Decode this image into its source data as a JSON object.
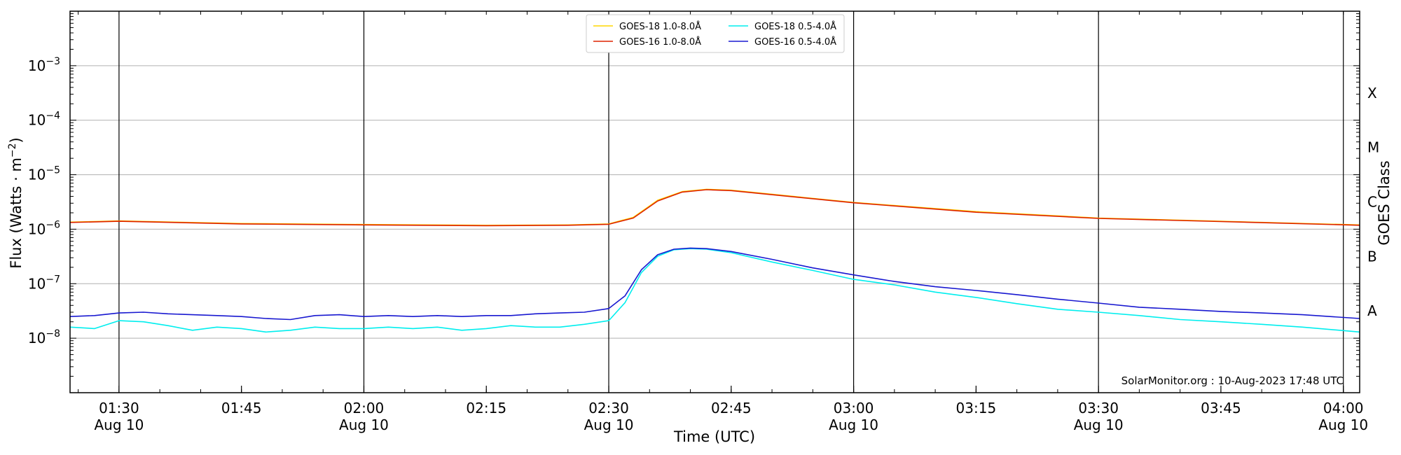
{
  "chart_data": {
    "type": "line",
    "xlabel": "Time (UTC)",
    "ylabel": "Flux (Watts · m",
    "ylabel_sup": "−2",
    "ylabel_close": ")",
    "y2label": "GOES Class",
    "yscale": "log",
    "ylim": [
      1e-09,
      0.01
    ],
    "xlim": [
      "2023-08-10T01:24",
      "2023-08-10T04:02"
    ],
    "grid": "horizontal",
    "legend_position": "top-center",
    "credit": "SolarMonitor.org : 10-Aug-2023 17:48 UTC",
    "y_ticks": [
      {
        "value": 0.001,
        "base": "10",
        "exp": "−3"
      },
      {
        "value": 0.0001,
        "base": "10",
        "exp": "−4"
      },
      {
        "value": 1e-05,
        "base": "10",
        "exp": "−5"
      },
      {
        "value": 1e-06,
        "base": "10",
        "exp": "−6"
      },
      {
        "value": 1e-07,
        "base": "10",
        "exp": "−7"
      },
      {
        "value": 1e-08,
        "base": "10",
        "exp": "−8"
      }
    ],
    "x_ticks": [
      {
        "t": "2023-08-10T01:30",
        "label": "01:30",
        "sub": "Aug 10"
      },
      {
        "t": "2023-08-10T01:45",
        "label": "01:45",
        "sub": ""
      },
      {
        "t": "2023-08-10T02:00",
        "label": "02:00",
        "sub": "Aug 10"
      },
      {
        "t": "2023-08-10T02:15",
        "label": "02:15",
        "sub": ""
      },
      {
        "t": "2023-08-10T02:30",
        "label": "02:30",
        "sub": "Aug 10"
      },
      {
        "t": "2023-08-10T02:45",
        "label": "02:45",
        "sub": ""
      },
      {
        "t": "2023-08-10T03:00",
        "label": "03:00",
        "sub": "Aug 10"
      },
      {
        "t": "2023-08-10T03:15",
        "label": "03:15",
        "sub": ""
      },
      {
        "t": "2023-08-10T03:30",
        "label": "03:30",
        "sub": "Aug 10"
      },
      {
        "t": "2023-08-10T03:45",
        "label": "03:45",
        "sub": ""
      },
      {
        "t": "2023-08-10T04:00",
        "label": "04:00",
        "sub": "Aug 10"
      }
    ],
    "vlines": [
      "2023-08-10T01:30",
      "2023-08-10T02:00",
      "2023-08-10T02:30",
      "2023-08-10T03:00",
      "2023-08-10T03:30",
      "2023-08-10T04:00"
    ],
    "goes_classes": [
      {
        "label": "X",
        "value": 0.0001
      },
      {
        "label": "M",
        "value": 1e-05
      },
      {
        "label": "C",
        "value": 1e-06
      },
      {
        "label": "B",
        "value": 1e-07
      },
      {
        "label": "A",
        "value": 1e-08
      }
    ],
    "series": [
      {
        "name": "GOES-18 1.0-8.0Å",
        "color": "#ffd700",
        "x": [
          "2023-08-10T01:24",
          "2023-08-10T01:30",
          "2023-08-10T01:45",
          "2023-08-10T02:00",
          "2023-08-10T02:15",
          "2023-08-10T02:25",
          "2023-08-10T02:30",
          "2023-08-10T02:33",
          "2023-08-10T02:36",
          "2023-08-10T02:39",
          "2023-08-10T02:42",
          "2023-08-10T02:45",
          "2023-08-10T03:00",
          "2023-08-10T03:15",
          "2023-08-10T03:30",
          "2023-08-10T03:45",
          "2023-08-10T04:02"
        ],
        "y": [
          1.35e-06,
          1.42e-06,
          1.27e-06,
          1.22e-06,
          1.18e-06,
          1.2e-06,
          1.25e-06,
          1.65e-06,
          3.4e-06,
          4.9e-06,
          5.4e-06,
          5.2e-06,
          3.1e-06,
          2.1e-06,
          1.6e-06,
          1.4e-06,
          1.2e-06
        ]
      },
      {
        "name": "GOES-16 1.0-8.0Å",
        "color": "#dd2200",
        "x": [
          "2023-08-10T01:24",
          "2023-08-10T01:30",
          "2023-08-10T01:45",
          "2023-08-10T02:00",
          "2023-08-10T02:15",
          "2023-08-10T02:25",
          "2023-08-10T02:30",
          "2023-08-10T02:33",
          "2023-08-10T02:36",
          "2023-08-10T02:39",
          "2023-08-10T02:42",
          "2023-08-10T02:45",
          "2023-08-10T03:00",
          "2023-08-10T03:15",
          "2023-08-10T03:30",
          "2023-08-10T03:45",
          "2023-08-10T04:02"
        ],
        "y": [
          1.33e-06,
          1.4e-06,
          1.25e-06,
          1.2e-06,
          1.16e-06,
          1.18e-06,
          1.23e-06,
          1.6e-06,
          3.3e-06,
          4.8e-06,
          5.3e-06,
          5.1e-06,
          3.05e-06,
          2.05e-06,
          1.58e-06,
          1.38e-06,
          1.18e-06
        ]
      },
      {
        "name": "GOES-18 0.5-4.0Å",
        "color": "#00eeee",
        "x": [
          "2023-08-10T01:24",
          "2023-08-10T01:27",
          "2023-08-10T01:30",
          "2023-08-10T01:33",
          "2023-08-10T01:36",
          "2023-08-10T01:39",
          "2023-08-10T01:42",
          "2023-08-10T01:45",
          "2023-08-10T01:48",
          "2023-08-10T01:51",
          "2023-08-10T01:54",
          "2023-08-10T01:57",
          "2023-08-10T02:00",
          "2023-08-10T02:03",
          "2023-08-10T02:06",
          "2023-08-10T02:09",
          "2023-08-10T02:12",
          "2023-08-10T02:15",
          "2023-08-10T02:18",
          "2023-08-10T02:21",
          "2023-08-10T02:24",
          "2023-08-10T02:27",
          "2023-08-10T02:30",
          "2023-08-10T02:32",
          "2023-08-10T02:34",
          "2023-08-10T02:36",
          "2023-08-10T02:38",
          "2023-08-10T02:40",
          "2023-08-10T02:42",
          "2023-08-10T02:45",
          "2023-08-10T02:50",
          "2023-08-10T02:55",
          "2023-08-10T03:00",
          "2023-08-10T03:05",
          "2023-08-10T03:10",
          "2023-08-10T03:15",
          "2023-08-10T03:20",
          "2023-08-10T03:25",
          "2023-08-10T03:30",
          "2023-08-10T03:35",
          "2023-08-10T03:40",
          "2023-08-10T03:45",
          "2023-08-10T03:50",
          "2023-08-10T03:55",
          "2023-08-10T04:02"
        ],
        "y": [
          1.6e-08,
          1.5e-08,
          2.1e-08,
          2e-08,
          1.7e-08,
          1.4e-08,
          1.6e-08,
          1.5e-08,
          1.3e-08,
          1.4e-08,
          1.6e-08,
          1.5e-08,
          1.5e-08,
          1.6e-08,
          1.5e-08,
          1.6e-08,
          1.4e-08,
          1.5e-08,
          1.7e-08,
          1.6e-08,
          1.6e-08,
          1.8e-08,
          2.1e-08,
          4.5e-08,
          1.6e-07,
          3.2e-07,
          4.2e-07,
          4.4e-07,
          4.3e-07,
          3.7e-07,
          2.5e-07,
          1.75e-07,
          1.2e-07,
          9.5e-08,
          7e-08,
          5.6e-08,
          4.3e-08,
          3.4e-08,
          3e-08,
          2.6e-08,
          2.2e-08,
          2e-08,
          1.8e-08,
          1.6e-08,
          1.3e-08
        ]
      },
      {
        "name": "GOES-16 0.5-4.0Å",
        "color": "#1818d0",
        "x": [
          "2023-08-10T01:24",
          "2023-08-10T01:27",
          "2023-08-10T01:30",
          "2023-08-10T01:33",
          "2023-08-10T01:36",
          "2023-08-10T01:39",
          "2023-08-10T01:42",
          "2023-08-10T01:45",
          "2023-08-10T01:48",
          "2023-08-10T01:51",
          "2023-08-10T01:54",
          "2023-08-10T01:57",
          "2023-08-10T02:00",
          "2023-08-10T02:03",
          "2023-08-10T02:06",
          "2023-08-10T02:09",
          "2023-08-10T02:12",
          "2023-08-10T02:15",
          "2023-08-10T02:18",
          "2023-08-10T02:21",
          "2023-08-10T02:24",
          "2023-08-10T02:27",
          "2023-08-10T02:30",
          "2023-08-10T02:32",
          "2023-08-10T02:34",
          "2023-08-10T02:36",
          "2023-08-10T02:38",
          "2023-08-10T02:40",
          "2023-08-10T02:42",
          "2023-08-10T02:45",
          "2023-08-10T02:50",
          "2023-08-10T02:55",
          "2023-08-10T03:00",
          "2023-08-10T03:05",
          "2023-08-10T03:10",
          "2023-08-10T03:15",
          "2023-08-10T03:20",
          "2023-08-10T03:25",
          "2023-08-10T03:30",
          "2023-08-10T03:35",
          "2023-08-10T03:40",
          "2023-08-10T03:45",
          "2023-08-10T03:50",
          "2023-08-10T03:55",
          "2023-08-10T04:02"
        ],
        "y": [
          2.5e-08,
          2.6e-08,
          2.9e-08,
          3e-08,
          2.8e-08,
          2.7e-08,
          2.6e-08,
          2.5e-08,
          2.3e-08,
          2.2e-08,
          2.6e-08,
          2.7e-08,
          2.5e-08,
          2.6e-08,
          2.5e-08,
          2.6e-08,
          2.5e-08,
          2.6e-08,
          2.6e-08,
          2.8e-08,
          2.9e-08,
          3e-08,
          3.5e-08,
          6e-08,
          1.8e-07,
          3.4e-07,
          4.3e-07,
          4.5e-07,
          4.4e-07,
          3.9e-07,
          2.8e-07,
          1.95e-07,
          1.45e-07,
          1.1e-07,
          8.8e-08,
          7.5e-08,
          6.3e-08,
          5.2e-08,
          4.4e-08,
          3.7e-08,
          3.4e-08,
          3.1e-08,
          2.9e-08,
          2.7e-08,
          2.3e-08
        ]
      }
    ]
  }
}
